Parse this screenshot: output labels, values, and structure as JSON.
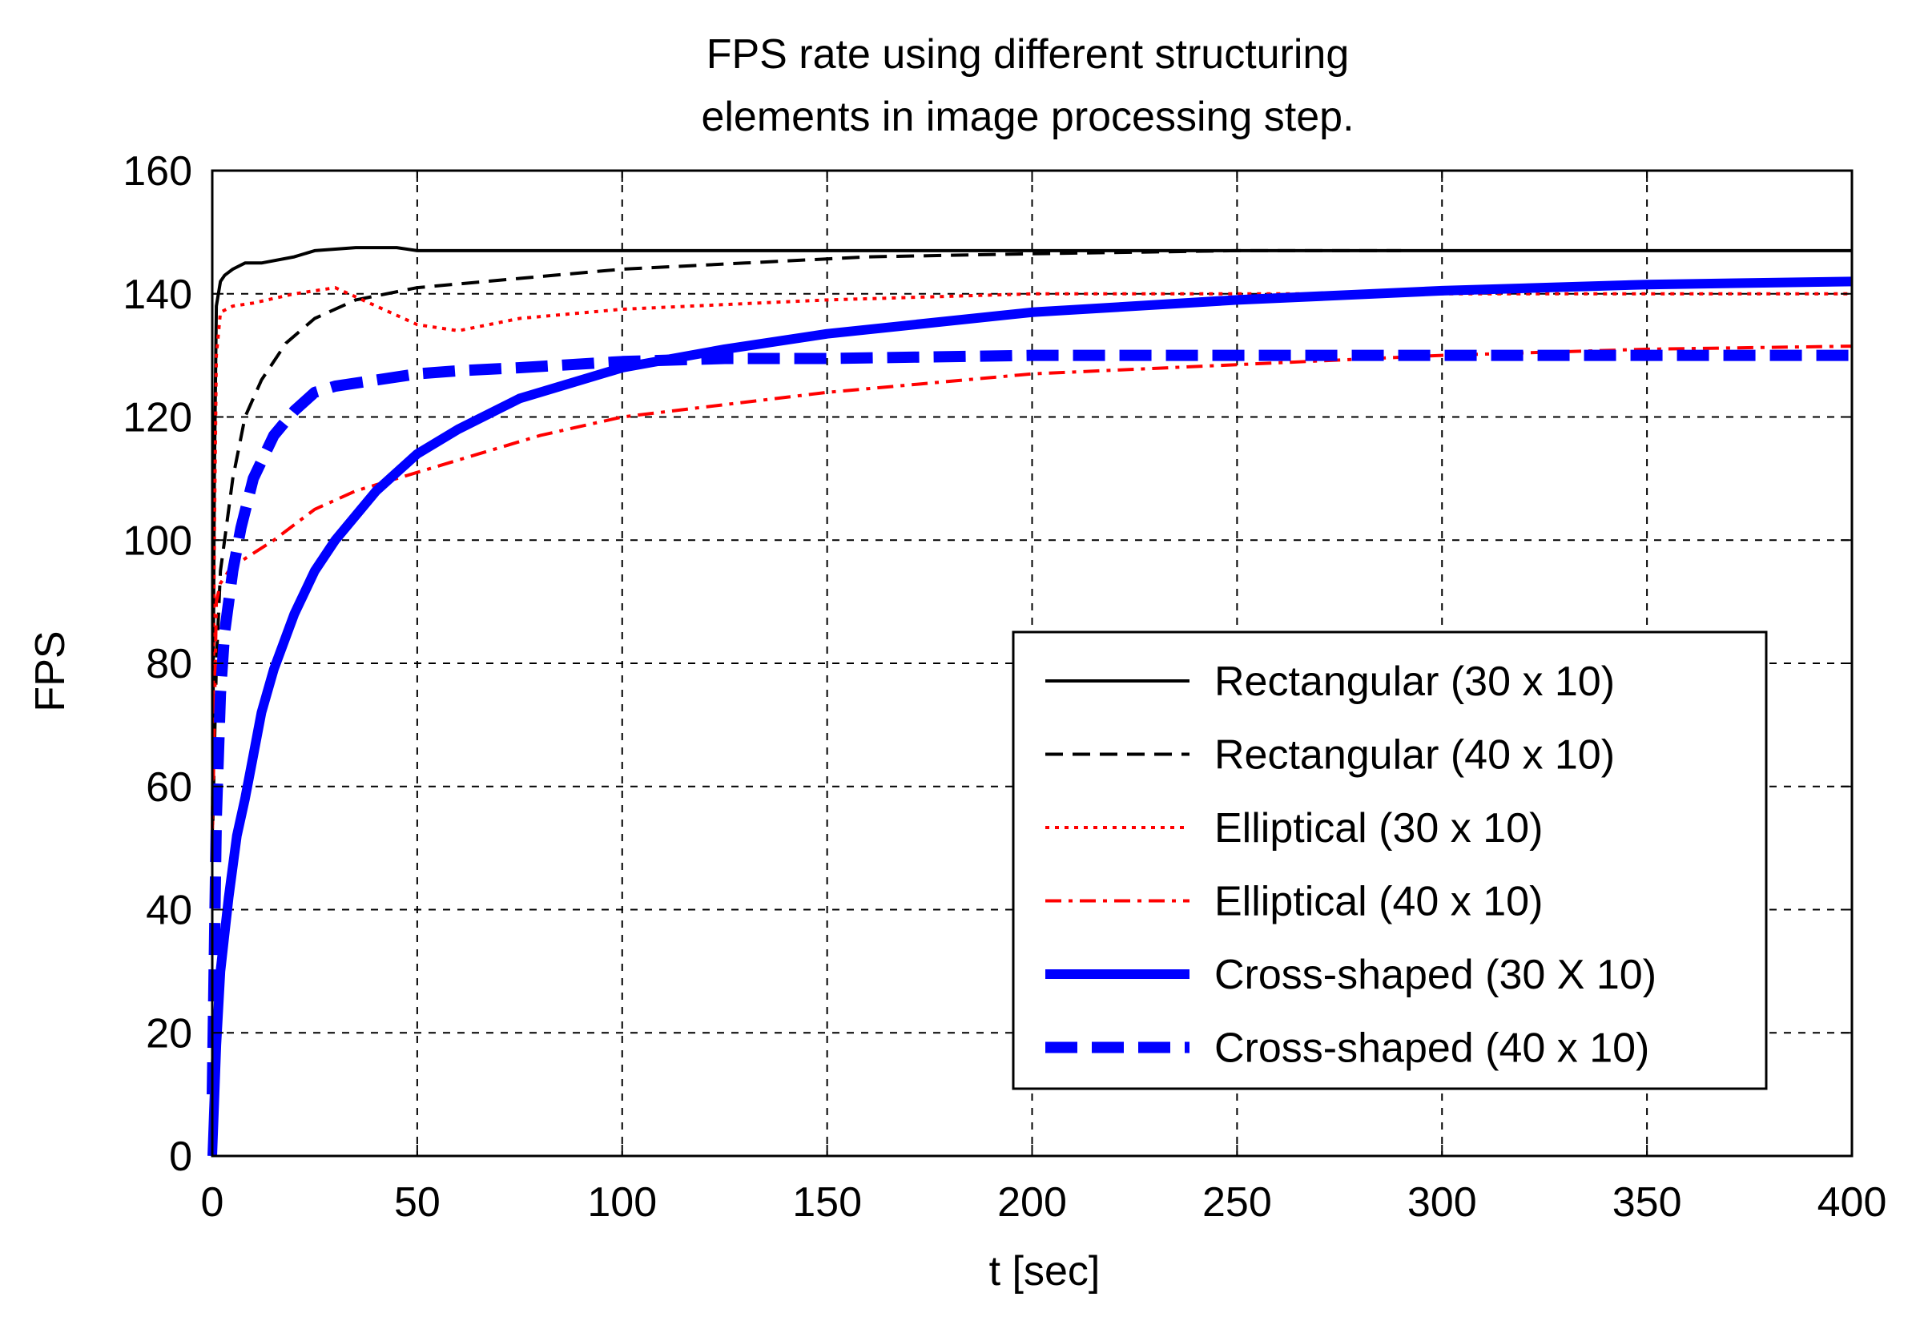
{
  "chart_data": {
    "type": "line",
    "title_lines": [
      "FPS rate using different structuring",
      "elements in image processing step."
    ],
    "xlabel": "t [sec]",
    "ylabel": "FPS",
    "xlim": [
      0,
      400
    ],
    "ylim": [
      0,
      160
    ],
    "grid": true,
    "legend_position": "bottom-right",
    "xticks": [
      0,
      50,
      100,
      150,
      200,
      250,
      300,
      350,
      400
    ],
    "xtick_labels": [
      "0",
      "50",
      "100",
      "150",
      "200",
      "250",
      "300",
      "350",
      "400"
    ],
    "yticks": [
      0,
      20,
      40,
      60,
      80,
      100,
      120,
      140,
      160
    ],
    "ytick_labels": [
      "0",
      "20",
      "40",
      "60",
      "80",
      "100",
      "120",
      "140",
      "160"
    ],
    "series": [
      {
        "name": "Rectangular (30 x 10)",
        "color": "#000000",
        "style": "solid",
        "x": [
          0,
          0.5,
          1,
          2,
          3,
          5,
          8,
          12,
          20,
          25,
          35,
          45,
          50,
          100,
          200,
          300,
          400
        ],
        "y": [
          50,
          110,
          138,
          142,
          143,
          144,
          145,
          145,
          146,
          147,
          147.5,
          147.5,
          147,
          147,
          147,
          147,
          147
        ]
      },
      {
        "name": "Rectangular (40 x 10)",
        "color": "#000000",
        "style": "dashed",
        "x": [
          0,
          1,
          2,
          3,
          5,
          8,
          12,
          18,
          25,
          35,
          50,
          75,
          100,
          130,
          160,
          200,
          250,
          290
        ],
        "y": [
          50,
          80,
          95,
          100,
          110,
          120,
          126,
          132,
          136,
          139,
          141,
          142.5,
          144,
          145,
          146,
          146.5,
          147,
          147
        ]
      },
      {
        "name": "Elliptical (30 x 10)",
        "color": "#ff0000",
        "style": "dotted",
        "x": [
          0,
          0.5,
          1,
          2,
          5,
          10,
          20,
          30,
          40,
          50,
          60,
          75,
          100,
          150,
          200,
          250,
          300,
          400
        ],
        "y": [
          50,
          100,
          130,
          137,
          138,
          138.5,
          140,
          141,
          138,
          135,
          134,
          136,
          137.5,
          139,
          140,
          140,
          140,
          140
        ]
      },
      {
        "name": "Elliptical (40 x 10)",
        "color": "#ff0000",
        "style": "dashdot",
        "x": [
          0,
          1,
          2,
          4,
          8,
          15,
          25,
          35,
          50,
          65,
          80,
          100,
          125,
          150,
          200,
          250,
          300,
          350,
          400
        ],
        "y": [
          50,
          90,
          93,
          95,
          97,
          100,
          105,
          108,
          111,
          114,
          117,
          120,
          122,
          124,
          127,
          128.5,
          130,
          131,
          131.5
        ]
      },
      {
        "name": "Cross-shaped (30 X 10)",
        "color": "#0000ff",
        "style": "solid-thick",
        "x": [
          0,
          1,
          2,
          4,
          6,
          8,
          10,
          12,
          15,
          20,
          25,
          30,
          40,
          50,
          60,
          75,
          100,
          125,
          150,
          200,
          250,
          300,
          350,
          400
        ],
        "y": [
          0,
          18,
          30,
          42,
          52,
          58,
          65,
          72,
          79,
          88,
          95,
          100,
          108,
          114,
          118,
          123,
          128,
          131,
          133.5,
          137,
          139,
          140.5,
          141.5,
          142
        ]
      },
      {
        "name": "Cross-shaped (40 x 10)",
        "color": "#0000ff",
        "style": "dashed-thick",
        "x": [
          0,
          1,
          2,
          3,
          5,
          7,
          10,
          15,
          20,
          25,
          30,
          40,
          50,
          60,
          75,
          100,
          125,
          150,
          200,
          250,
          300,
          350,
          400
        ],
        "y": [
          10,
          55,
          75,
          85,
          95,
          102,
          110,
          117,
          121,
          124,
          125,
          126,
          127,
          127.5,
          128,
          129,
          129.5,
          129.5,
          130,
          130,
          130,
          130,
          130
        ]
      }
    ]
  }
}
